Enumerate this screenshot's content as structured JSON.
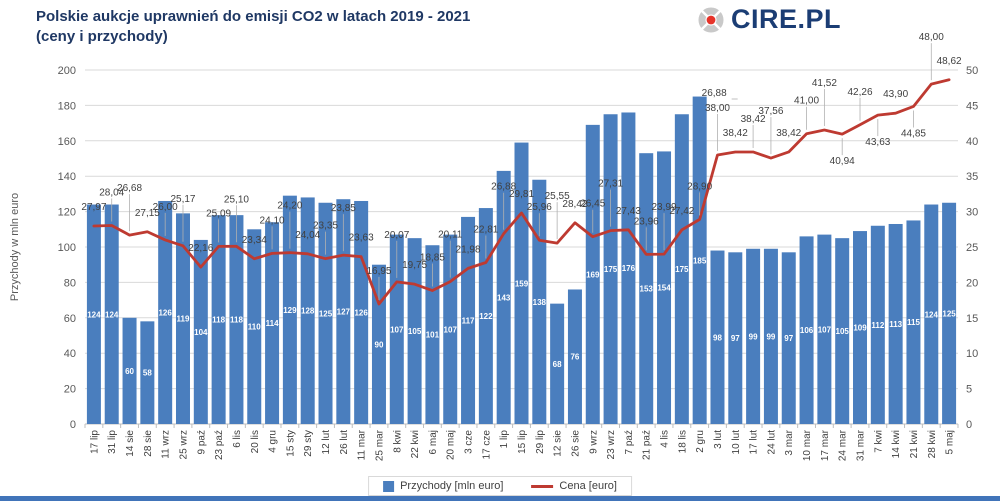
{
  "header": {
    "title_line1": "Polskie aukcje uprawnień do emisji CO2 w latach 2019 - 2021",
    "title_line2": "(ceny i przychody)",
    "logo_text": "CIRE.PL"
  },
  "colors": {
    "title": "#1f3864",
    "logo_text": "#1b3d74",
    "logo_dot": "#e63329",
    "logo_ring": "#c9c9c9",
    "bar": "#4a7ebe",
    "line": "#be3a31",
    "bottom_strip": "#4174b9"
  },
  "chart_data": {
    "type": "bar",
    "title": "Polskie aukcje uprawnień do emisji CO2 w latach 2019 - 2021 (ceny i przychody)",
    "categories": [
      "17 lip",
      "31 lip",
      "14 sie",
      "28 sie",
      "11 wrz",
      "25 wrz",
      "9 paź",
      "23 paź",
      "6 lis",
      "20 lis",
      "4 gru",
      "15 sty",
      "29 sty",
      "12 lut",
      "26 lut",
      "11 mar",
      "25 mar",
      "8 kwi",
      "22 kwi",
      "6 maj",
      "20 maj",
      "3 cze",
      "17 cze",
      "1 lip",
      "15 lip",
      "29 lip",
      "12 sie",
      "26 sie",
      "9 wrz",
      "23 wrz",
      "7 paź",
      "21 paź",
      "4 lis",
      "18 lis",
      "2 gru",
      "3 lut",
      "10 lut",
      "17 lut",
      "24 lut",
      "3 mar",
      "10 mar",
      "17 mar",
      "24 mar",
      "31 mar",
      "7 kwi",
      "14 kwi",
      "21 kwi",
      "28 kwi",
      "5 maj"
    ],
    "series": [
      {
        "name": "Przychody [mln euro]",
        "type": "bar",
        "axis": "left",
        "color": "#4a7ebe",
        "values": [
          124,
          124,
          60,
          58,
          126,
          119,
          104,
          118,
          118,
          110,
          114,
          129,
          128,
          125,
          127,
          126,
          90,
          107,
          105,
          101,
          107,
          117,
          122,
          143,
          159,
          138,
          68,
          76,
          169,
          175,
          176,
          153,
          154,
          175,
          185,
          98,
          97,
          99,
          99,
          97,
          106,
          107,
          105,
          109,
          112,
          113,
          115,
          124,
          125
        ]
      },
      {
        "name": "Cena [euro]",
        "type": "line",
        "axis": "right",
        "color": "#be3a31",
        "values": [
          27.97,
          28.04,
          26.68,
          27.15,
          26.0,
          25.17,
          22.16,
          25.09,
          25.1,
          23.34,
          24.1,
          24.2,
          24.04,
          23.35,
          23.85,
          23.63,
          16.95,
          20.07,
          19.75,
          18.85,
          20.11,
          21.98,
          22.81,
          26.88,
          29.81,
          25.96,
          25.55,
          28.42,
          26.45,
          27.31,
          27.43,
          23.96,
          23.99,
          27.42,
          28.9,
          38.0,
          38.42,
          38.42,
          37.56,
          38.42,
          41.0,
          41.52,
          40.94,
          42.26,
          43.63,
          43.9,
          44.85,
          48.0,
          48.62
        ]
      }
    ],
    "left_axis": {
      "title": "Przychody w mln euro",
      "min": 0,
      "max": 200,
      "step": 20
    },
    "right_axis": {
      "title": "",
      "min": 0,
      "max": 50,
      "step": 5
    },
    "grid": true,
    "legend_position": "bottom",
    "stray_label": {
      "text": "26,88",
      "near_category": "2 gru"
    }
  },
  "legend": {
    "revenue_label": "Przychody [mln euro]",
    "price_label": "Cena [euro]"
  }
}
